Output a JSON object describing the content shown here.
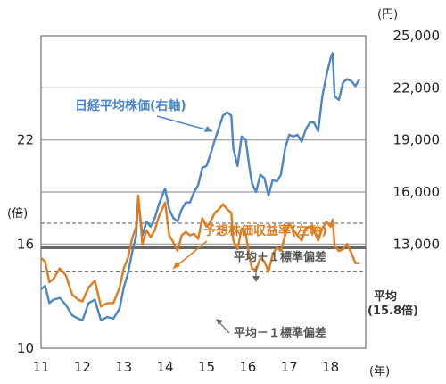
{
  "chart_data": {
    "type": "line",
    "left_axis": {
      "unit": "(倍)",
      "ticks": [
        "10",
        "16",
        "22"
      ],
      "range": [
        10,
        28
      ]
    },
    "right_axis": {
      "unit": "(円)",
      "ticks": [
        "13,000",
        "16,000",
        "19,000",
        "22,000",
        "25,000"
      ],
      "range": [
        7000,
        25000
      ]
    },
    "x_axis": {
      "unit": "(年)",
      "ticks": [
        "11",
        "12",
        "13",
        "14",
        "15",
        "16",
        "17",
        "18"
      ],
      "range": [
        2011.0,
        2018.85
      ]
    },
    "series": [
      {
        "name": "日経平均株価(右軸)",
        "axis": "right",
        "color": "#4a86c8",
        "x": [
          2011.0,
          2011.1,
          2011.2,
          2011.3,
          2011.45,
          2011.6,
          2011.75,
          2011.9,
          2012.0,
          2012.15,
          2012.3,
          2012.45,
          2012.6,
          2012.75,
          2012.9,
          2013.0,
          2013.1,
          2013.2,
          2013.3,
          2013.35,
          2013.45,
          2013.55,
          2013.65,
          2013.75,
          2013.85,
          2014.0,
          2014.1,
          2014.2,
          2014.3,
          2014.4,
          2014.5,
          2014.6,
          2014.7,
          2014.8,
          2014.9,
          2015.0,
          2015.1,
          2015.2,
          2015.3,
          2015.4,
          2015.5,
          2015.6,
          2015.65,
          2015.75,
          2015.85,
          2015.95,
          2016.05,
          2016.1,
          2016.2,
          2016.3,
          2016.4,
          2016.5,
          2016.6,
          2016.7,
          2016.8,
          2016.9,
          2017.0,
          2017.1,
          2017.2,
          2017.3,
          2017.4,
          2017.5,
          2017.6,
          2017.7,
          2017.8,
          2017.9,
          2018.0,
          2018.05,
          2018.1,
          2018.2,
          2018.3,
          2018.4,
          2018.5,
          2018.6,
          2018.7
        ],
        "values": [
          10400,
          10600,
          9600,
          9800,
          9900,
          9500,
          8900,
          8700,
          8600,
          9600,
          9800,
          8600,
          8800,
          8700,
          9300,
          10500,
          11300,
          12500,
          13500,
          15600,
          13500,
          14300,
          14000,
          14500,
          15300,
          16200,
          15000,
          14500,
          14300,
          15000,
          15400,
          15400,
          16000,
          16400,
          17400,
          17500,
          18200,
          19000,
          19700,
          20400,
          20600,
          20400,
          18500,
          17500,
          19200,
          19000,
          17200,
          16500,
          16000,
          17000,
          16800,
          15800,
          16700,
          16600,
          17000,
          18500,
          19300,
          19200,
          19300,
          18900,
          19600,
          20000,
          20000,
          19500,
          21500,
          22700,
          23700,
          24000,
          21500,
          21300,
          22300,
          22500,
          22400,
          22100,
          22500
        ]
      },
      {
        "name": "予想株価収益率(左軸)",
        "axis": "left",
        "color": "#e07b1f",
        "x": [
          2011.0,
          2011.1,
          2011.2,
          2011.3,
          2011.45,
          2011.6,
          2011.75,
          2011.9,
          2012.0,
          2012.15,
          2012.3,
          2012.45,
          2012.6,
          2012.75,
          2012.9,
          2013.0,
          2013.1,
          2013.2,
          2013.3,
          2013.35,
          2013.45,
          2013.55,
          2013.65,
          2013.75,
          2013.85,
          2014.0,
          2014.1,
          2014.2,
          2014.3,
          2014.4,
          2014.5,
          2014.6,
          2014.7,
          2014.8,
          2014.9,
          2015.0,
          2015.1,
          2015.2,
          2015.3,
          2015.4,
          2015.5,
          2015.6,
          2015.65,
          2015.75,
          2015.85,
          2015.95,
          2016.05,
          2016.1,
          2016.2,
          2016.3,
          2016.4,
          2016.5,
          2016.6,
          2016.7,
          2016.8,
          2016.9,
          2017.0,
          2017.1,
          2017.2,
          2017.3,
          2017.4,
          2017.5,
          2017.6,
          2017.7,
          2017.8,
          2017.9,
          2018.0,
          2018.05,
          2018.1,
          2018.2,
          2018.3,
          2018.4,
          2018.5,
          2018.6,
          2018.7
        ],
        "values": [
          15.2,
          15.0,
          13.8,
          14.0,
          14.6,
          14.2,
          13.1,
          12.8,
          12.7,
          13.5,
          13.9,
          12.4,
          12.6,
          12.6,
          13.5,
          14.6,
          15.2,
          16.3,
          17.0,
          18.8,
          16.0,
          16.8,
          16.4,
          16.8,
          17.6,
          18.4,
          16.5,
          16.1,
          15.6,
          16.5,
          16.7,
          16.5,
          16.6,
          16.3,
          17.5,
          17.0,
          17.3,
          17.8,
          18.0,
          18.3,
          18.0,
          17.8,
          16.2,
          15.7,
          16.9,
          16.6,
          15.1,
          14.6,
          14.5,
          15.2,
          15.0,
          14.4,
          15.4,
          15.8,
          15.6,
          16.5,
          17.2,
          16.8,
          16.5,
          16.2,
          16.9,
          17.0,
          16.8,
          16.2,
          16.9,
          17.3,
          17.0,
          17.4,
          15.9,
          15.6,
          15.7,
          16.0,
          15.5,
          14.9,
          14.9
        ]
      }
    ],
    "reference_lines": [
      {
        "label": "平均",
        "sublabel": "(15.8倍)",
        "value": 15.8,
        "axis": "left",
        "style": "solid"
      },
      {
        "label": "平均＋１標準偏差",
        "value": 17.2,
        "axis": "left",
        "style": "dashed"
      },
      {
        "label": "平均－１標準偏差",
        "value": 14.4,
        "axis": "left",
        "style": "dashed"
      }
    ],
    "grid": true
  }
}
